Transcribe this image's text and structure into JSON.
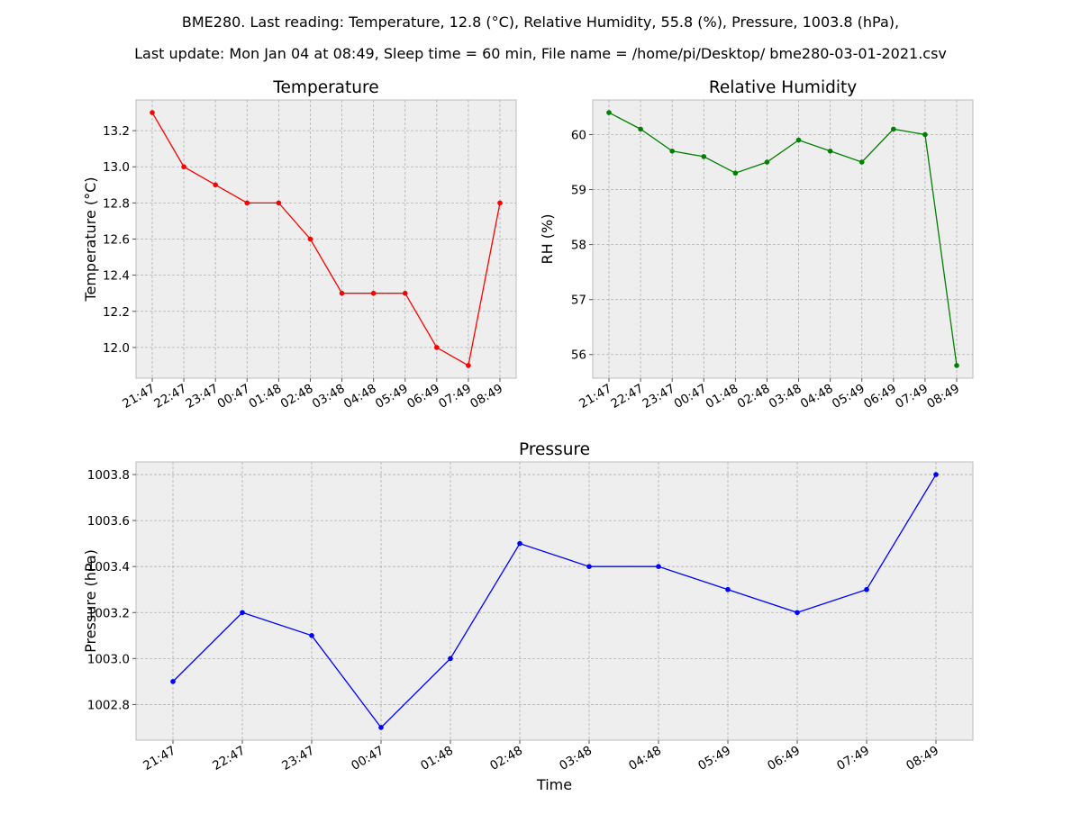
{
  "header": {
    "line1": "BME280. Last reading: Temperature, 12.8 (°C), Relative Humidity, 55.8 (%), Pressure, 1003.8 (hPa),",
    "line2": "Last update: Mon Jan 04 at 08:49, Sleep time = 60 min, File name = /home/pi/Desktop/ bme280-03-01-2021.csv"
  },
  "chart_data": [
    {
      "id": "temperature",
      "type": "line",
      "title": "Temperature",
      "xlabel": "",
      "ylabel": "Temperature (°C)",
      "categories": [
        "21:47",
        "22:47",
        "23:47",
        "00:47",
        "01:48",
        "02:48",
        "03:48",
        "04:48",
        "05:49",
        "06:49",
        "07:49",
        "08:49"
      ],
      "values": [
        13.3,
        13.0,
        12.9,
        12.8,
        12.8,
        12.6,
        12.3,
        12.3,
        12.3,
        12.0,
        11.9,
        12.8
      ],
      "ylim": [
        11.83,
        13.37
      ],
      "yticks": [
        12.0,
        12.2,
        12.4,
        12.6,
        12.8,
        13.0,
        13.2
      ],
      "ytick_decimals": 1,
      "color": "#ff0000",
      "grid": true
    },
    {
      "id": "humidity",
      "type": "line",
      "title": "Relative Humidity",
      "xlabel": "",
      "ylabel": "RH (%)",
      "categories": [
        "21:47",
        "22:47",
        "23:47",
        "00:47",
        "01:48",
        "02:48",
        "03:48",
        "04:48",
        "05:49",
        "06:49",
        "07:49",
        "08:49"
      ],
      "values": [
        60.4,
        60.1,
        59.7,
        59.6,
        59.3,
        59.5,
        59.9,
        59.7,
        59.5,
        60.1,
        60.0,
        55.8
      ],
      "ylim": [
        55.57,
        60.63
      ],
      "yticks": [
        56,
        57,
        58,
        59,
        60
      ],
      "ytick_decimals": 0,
      "color": "#008000",
      "grid": true
    },
    {
      "id": "pressure",
      "type": "line",
      "title": "Pressure",
      "xlabel": "Time",
      "ylabel": "Pressure (hPa)",
      "categories": [
        "21:47",
        "22:47",
        "23:47",
        "00:47",
        "01:48",
        "02:48",
        "03:48",
        "04:48",
        "05:49",
        "06:49",
        "07:49",
        "08:49"
      ],
      "values": [
        1002.9,
        1003.2,
        1003.1,
        1002.7,
        1003.0,
        1003.5,
        1003.4,
        1003.4,
        1003.3,
        1003.2,
        1003.3,
        1003.8
      ],
      "ylim": [
        1002.645,
        1003.855
      ],
      "yticks": [
        1002.8,
        1003.0,
        1003.2,
        1003.4,
        1003.6,
        1003.8
      ],
      "ytick_decimals": 1,
      "color": "#0000ff",
      "grid": true
    }
  ]
}
